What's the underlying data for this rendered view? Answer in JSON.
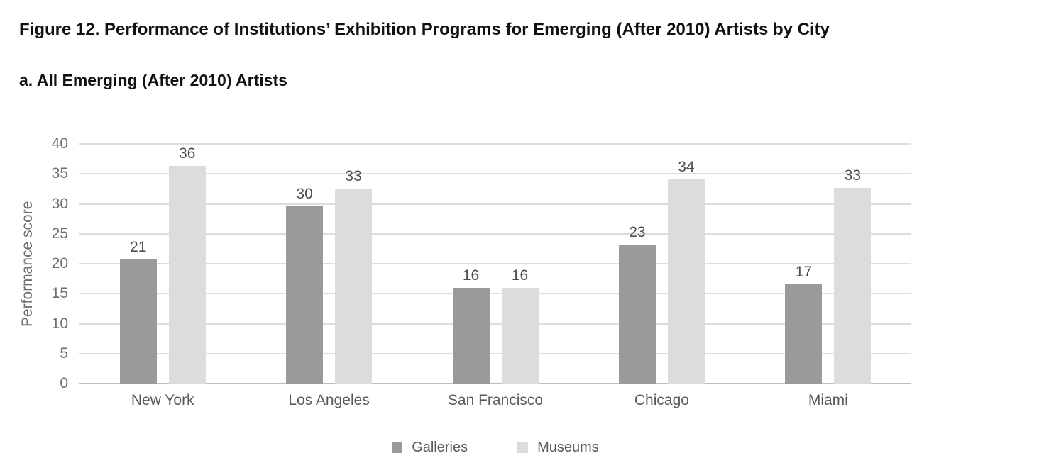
{
  "header": {
    "title": "Figure 12. Performance of Institutions’ Exhibition Programs for Emerging (After 2010) Artists by City",
    "subtitle": "a. All Emerging (After 2010) Artists"
  },
  "chart_data": {
    "type": "bar",
    "title": "Figure 12. Performance of Institutions’ Exhibition Programs for Emerging (After 2010) Artists by City",
    "subtitle": "a. All Emerging (After 2010) Artists",
    "categories": [
      "New York",
      "Los Angeles",
      "San Francisco",
      "Chicago",
      "Miami"
    ],
    "series": [
      {
        "name": "Galleries",
        "color": "#9a9a9a",
        "values": [
          20.7,
          29.6,
          16,
          23.2,
          16.6
        ],
        "data_labels": [
          "21",
          "30",
          "16",
          "23",
          "17"
        ]
      },
      {
        "name": "Museums",
        "color": "#dcdcdc",
        "values": [
          36.3,
          32.5,
          16,
          34.1,
          32.7
        ],
        "data_labels": [
          "36",
          "33",
          "16",
          "34",
          "33"
        ]
      }
    ],
    "xlabel": "",
    "ylabel": "Performance score",
    "ylim": [
      0,
      40
    ],
    "ytick_step": 5,
    "yticks": [
      40,
      35,
      30,
      25,
      20,
      15,
      10,
      5,
      0
    ],
    "grid": true,
    "gridline_color": "#dddddd",
    "axisline_color": "#bfbfbf",
    "legend_position": "bottom"
  }
}
